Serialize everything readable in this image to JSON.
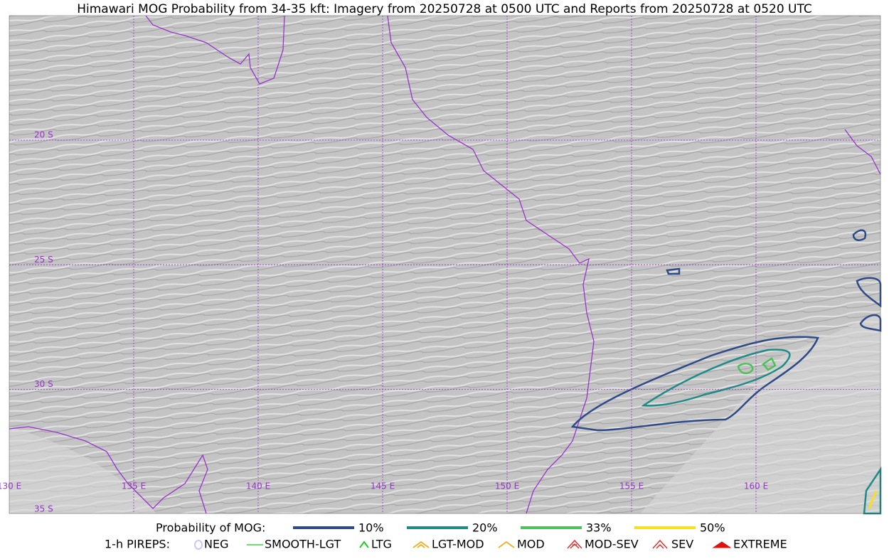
{
  "title": "Himawari MOG Probability from 34-35 kft: Imagery from 20250728 at 0500 UTC and Reports from 20250728 at 0520 UTC",
  "map": {
    "lon_labels": [
      "130 E",
      "135 E",
      "140 E",
      "145 E",
      "150 E",
      "155 E",
      "160 E"
    ],
    "lat_labels": [
      "20 S",
      "25 S",
      "30 S",
      "35 S"
    ]
  },
  "legend": {
    "probability": {
      "label": "Probability of MOG:",
      "items": [
        {
          "label": "10%",
          "color": "#2e4a87"
        },
        {
          "label": "20%",
          "color": "#1f8a87"
        },
        {
          "label": "33%",
          "color": "#4cc25a"
        },
        {
          "label": "50%",
          "color": "#f5e11c"
        }
      ]
    },
    "pireps": {
      "label": "1-h PIREPS:",
      "items": [
        {
          "label": "NEG",
          "color": "#c8c8ff"
        },
        {
          "label": "SMOOTH-LGT",
          "color": "#33dd33"
        },
        {
          "label": "LTG",
          "color": "#22cc22"
        },
        {
          "label": "LGT-MOD",
          "color": "#f0b020"
        },
        {
          "label": "MOD",
          "color": "#f0b020"
        },
        {
          "label": "MOD-SEV",
          "color": "#e03030"
        },
        {
          "label": "SEV",
          "color": "#e03030"
        },
        {
          "label": "EXTREME",
          "color": "#e01010"
        }
      ]
    }
  }
}
